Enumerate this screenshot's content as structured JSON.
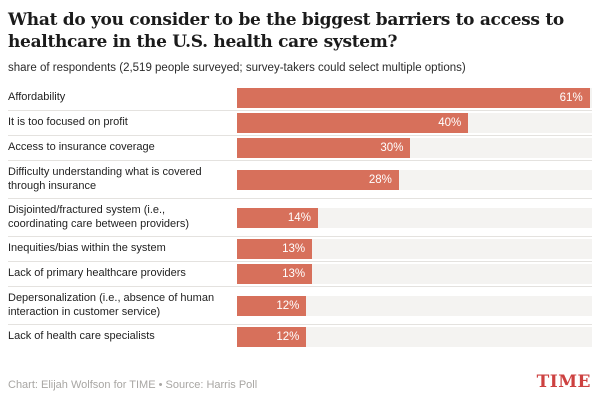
{
  "header": {
    "title": "What do you consider to be the biggest barriers to access to healthcare in the U.S. health care system?",
    "subtitle": "share of respondents (2,519 people surveyed; survey-takers could select multiple options)"
  },
  "chart_data": {
    "type": "bar",
    "orientation": "horizontal",
    "title": "What do you consider to be the biggest barriers to access to healthcare in the U.S. health care system?",
    "subtitle": "share of respondents (2,519 people surveyed; survey-takers could select multiple options)",
    "categories": [
      "Affordability",
      "It is too focused on profit",
      "Access to insurance coverage",
      "Difficulty understanding what is covered through insurance",
      "Disjointed/fractured system (i.e., coordinating care between providers)",
      "Inequities/bias within the system",
      "Lack of primary healthcare providers",
      "Depersonalization (i.e., absence of human interaction in customer service)",
      "Lack of health care specialists"
    ],
    "values": [
      61,
      40,
      30,
      28,
      14,
      13,
      13,
      12,
      12
    ],
    "value_suffix": "%",
    "value_labels": [
      "61%",
      "40%",
      "30%",
      "28%",
      "14%",
      "13%",
      "13%",
      "12%",
      "12%"
    ],
    "xlabel": "",
    "ylabel": "",
    "xlim": [
      0,
      61.4
    ],
    "grid": false,
    "legend": false,
    "value_label_position": "inside-end",
    "bar_color": "#d7705b",
    "track_color": "#f4f3f1",
    "separator_color": "#e4e2df"
  },
  "footer": {
    "credit": "Chart: Elijah Wolfson for TIME • Source: Harris Poll",
    "logo": "TIME",
    "logo_color": "#cd4140"
  }
}
